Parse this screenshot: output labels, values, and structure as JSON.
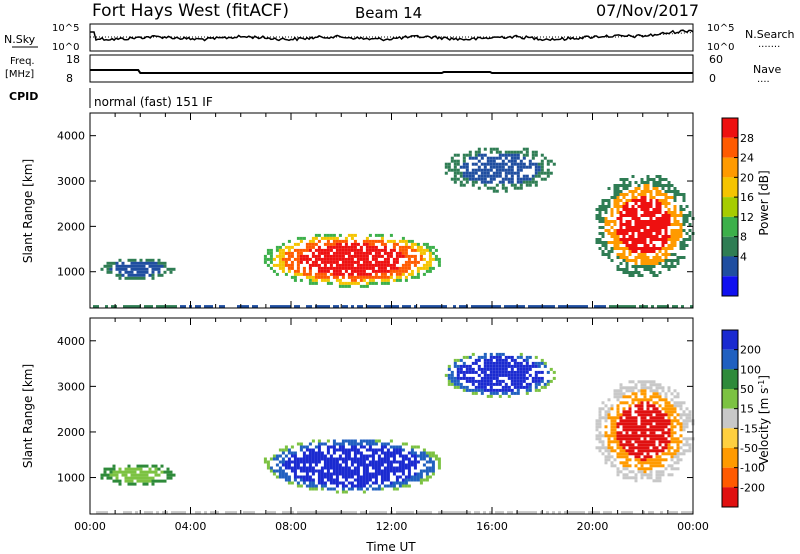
{
  "header": {
    "title": "Fort Hays West (fitACF)",
    "beam": "Beam 14",
    "date": "07/Nov/2017"
  },
  "top_panels": {
    "nsky_label": "N.Sky",
    "nsearch_label": "N.Search",
    "nsearch_dots": "·······",
    "noise_ticks": [
      "10^5",
      "10^0"
    ],
    "freq_label": "Freq.",
    "freq_unit": "[MHz]",
    "freq_ticks": [
      "18",
      "8"
    ],
    "nave_label": "Nave",
    "nave_dots": "····",
    "nave_ticks": [
      "60",
      "0"
    ],
    "cpid_label": "CPID",
    "cpid_text": "normal (fast) 151 IF"
  },
  "chart_data": [
    {
      "type": "heatmap",
      "panel": "power",
      "ylabel": "Slant Range [km]",
      "xlim_hours": [
        0,
        24
      ],
      "ylim": [
        200,
        4500
      ],
      "yticks": [
        1000,
        2000,
        3000,
        4000
      ],
      "colorbar": {
        "label": "Power [dB]",
        "ticks": [
          "28",
          "24",
          "20",
          "16",
          "12",
          "8",
          "4"
        ],
        "colors": [
          "#ee1010",
          "#ff5a00",
          "#ff9a00",
          "#f5c400",
          "#a6cc00",
          "#3cb04a",
          "#2f7d54",
          "#1f4ea0",
          "#1010f0"
        ]
      },
      "regions": [
        {
          "t0": 0.3,
          "t1": 3.3,
          "r0": 850,
          "r1": 1350,
          "level": "low"
        },
        {
          "t0": 6.8,
          "t1": 14.0,
          "r0": 700,
          "r1": 1900,
          "level": "high"
        },
        {
          "t0": 20.0,
          "t1": 24.0,
          "r0": 900,
          "r1": 3200,
          "level": "mid"
        },
        {
          "t0": 14.0,
          "t1": 18.5,
          "r0": 2800,
          "r1": 3800,
          "level": "low"
        },
        {
          "t0": 0.0,
          "t1": 24.0,
          "r0": 200,
          "r1": 330,
          "level": "low"
        }
      ]
    },
    {
      "type": "heatmap",
      "panel": "velocity",
      "ylabel": "Slant Range [km]",
      "xlabel": "Time UT",
      "xticks": [
        "00:00",
        "04:00",
        "08:00",
        "12:00",
        "16:00",
        "20:00",
        "00:00"
      ],
      "xlim_hours": [
        0,
        24
      ],
      "ylim": [
        200,
        4500
      ],
      "yticks": [
        1000,
        2000,
        3000,
        4000
      ],
      "colorbar": {
        "label": "Velocity [m s-1]",
        "ticks": [
          "200",
          "100",
          "50",
          "15",
          "-15",
          "-50",
          "-100",
          "-200"
        ],
        "colors": [
          "#1a2ad0",
          "#2060c0",
          "#2e8a3a",
          "#7cc242",
          "#c8c8c8",
          "#ffd040",
          "#ff9a00",
          "#ff5a00",
          "#e01010"
        ]
      },
      "regions": [
        {
          "t0": 0.3,
          "t1": 3.3,
          "r0": 850,
          "r1": 1350,
          "level": "green"
        },
        {
          "t0": 6.8,
          "t1": 14.0,
          "r0": 700,
          "r1": 1900,
          "level": "blue"
        },
        {
          "t0": 20.0,
          "t1": 24.0,
          "r0": 900,
          "r1": 3200,
          "level": "mixed"
        },
        {
          "t0": 14.0,
          "t1": 18.5,
          "r0": 2800,
          "r1": 3800,
          "level": "blue"
        },
        {
          "t0": 0.0,
          "t1": 24.0,
          "r0": 200,
          "r1": 330,
          "level": "gray"
        }
      ]
    }
  ]
}
